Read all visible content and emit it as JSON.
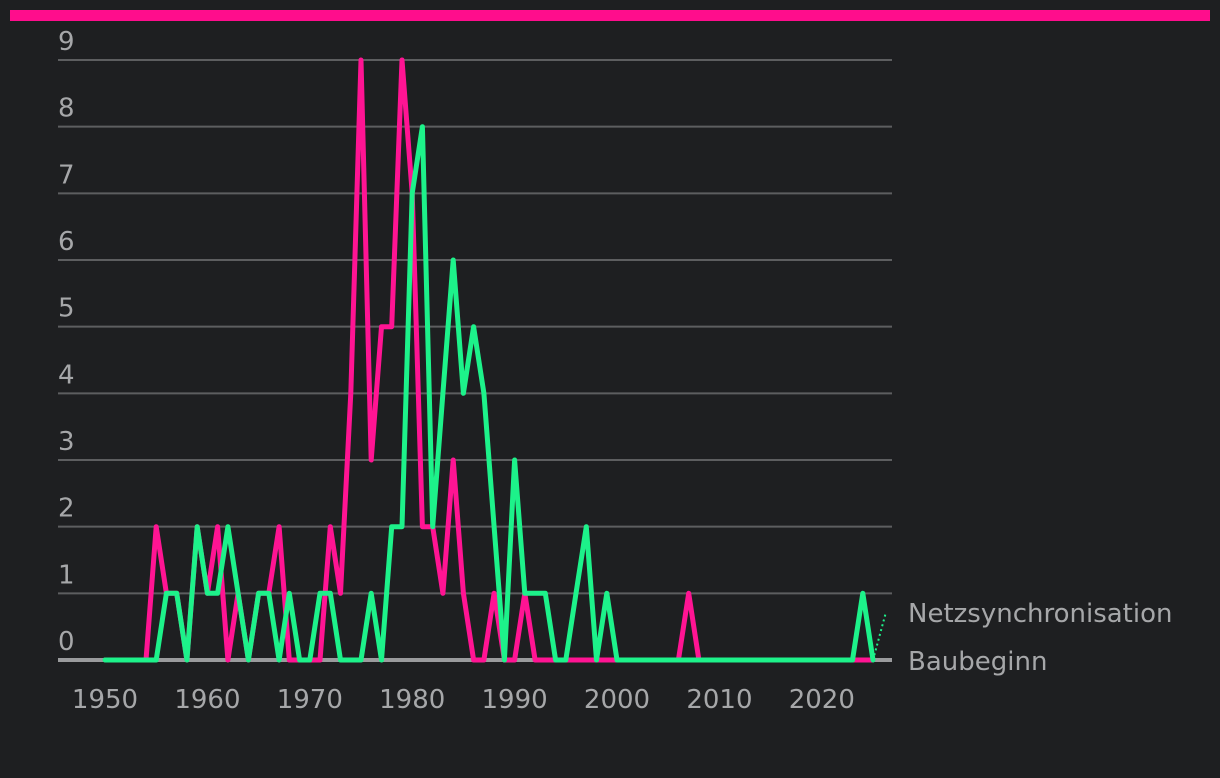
{
  "colors": {
    "background": "#1e1f21",
    "accent_bar": "#ff0d8c",
    "baubeginn": "#ff1493",
    "netzsynchronisation": "#1df28a",
    "grid": "#5d5e60",
    "text": "#a6a7a9"
  },
  "chart_data": {
    "type": "line",
    "title": "",
    "xlabel": "",
    "ylabel": "",
    "xlim": [
      1950,
      2025
    ],
    "ylim": [
      0,
      9
    ],
    "x_ticks": [
      1950,
      1960,
      1970,
      1980,
      1990,
      2000,
      2010,
      2020
    ],
    "y_ticks": [
      0,
      1,
      2,
      3,
      4,
      5,
      6,
      7,
      8,
      9
    ],
    "grid": true,
    "x": [
      1950,
      1951,
      1952,
      1953,
      1954,
      1955,
      1956,
      1957,
      1958,
      1959,
      1960,
      1961,
      1962,
      1963,
      1964,
      1965,
      1966,
      1967,
      1968,
      1969,
      1970,
      1971,
      1972,
      1973,
      1974,
      1975,
      1976,
      1977,
      1978,
      1979,
      1980,
      1981,
      1982,
      1983,
      1984,
      1985,
      1986,
      1987,
      1988,
      1989,
      1990,
      1991,
      1992,
      1993,
      1994,
      1995,
      1996,
      1997,
      1998,
      1999,
      2000,
      2001,
      2002,
      2003,
      2004,
      2005,
      2006,
      2007,
      2008,
      2009,
      2010,
      2011,
      2012,
      2013,
      2014,
      2015,
      2016,
      2017,
      2018,
      2019,
      2020,
      2021,
      2022,
      2023,
      2024,
      2025
    ],
    "series": [
      {
        "name": "Baubeginn",
        "values": [
          0,
          0,
          0,
          0,
          0,
          2,
          1,
          1,
          0,
          2,
          1,
          2,
          0,
          1,
          0,
          1,
          1,
          2,
          0,
          0,
          0,
          0,
          2,
          1,
          4,
          9,
          3,
          5,
          5,
          9,
          7,
          2,
          2,
          1,
          3,
          1,
          0,
          0,
          1,
          0,
          0,
          1,
          0,
          0,
          0,
          0,
          0,
          0,
          0,
          0,
          0,
          0,
          0,
          0,
          0,
          0,
          0,
          1,
          0,
          0,
          0,
          0,
          0,
          0,
          0,
          0,
          0,
          0,
          0,
          0,
          0,
          0,
          0,
          0,
          0,
          0
        ]
      },
      {
        "name": "Netzsynchronisation",
        "values": [
          0,
          0,
          0,
          0,
          0,
          0,
          1,
          1,
          0,
          2,
          1,
          1,
          2,
          1,
          0,
          1,
          1,
          0,
          1,
          0,
          0,
          1,
          1,
          0,
          0,
          0,
          1,
          0,
          2,
          2,
          7,
          8,
          2,
          4,
          6,
          4,
          5,
          4,
          2,
          0,
          3,
          1,
          1,
          1,
          0,
          0,
          1,
          2,
          0,
          1,
          0,
          0,
          0,
          0,
          0,
          0,
          0,
          0,
          0,
          0,
          0,
          0,
          0,
          0,
          0,
          0,
          0,
          0,
          0,
          0,
          0,
          0,
          0,
          0,
          1,
          0
        ]
      }
    ]
  }
}
